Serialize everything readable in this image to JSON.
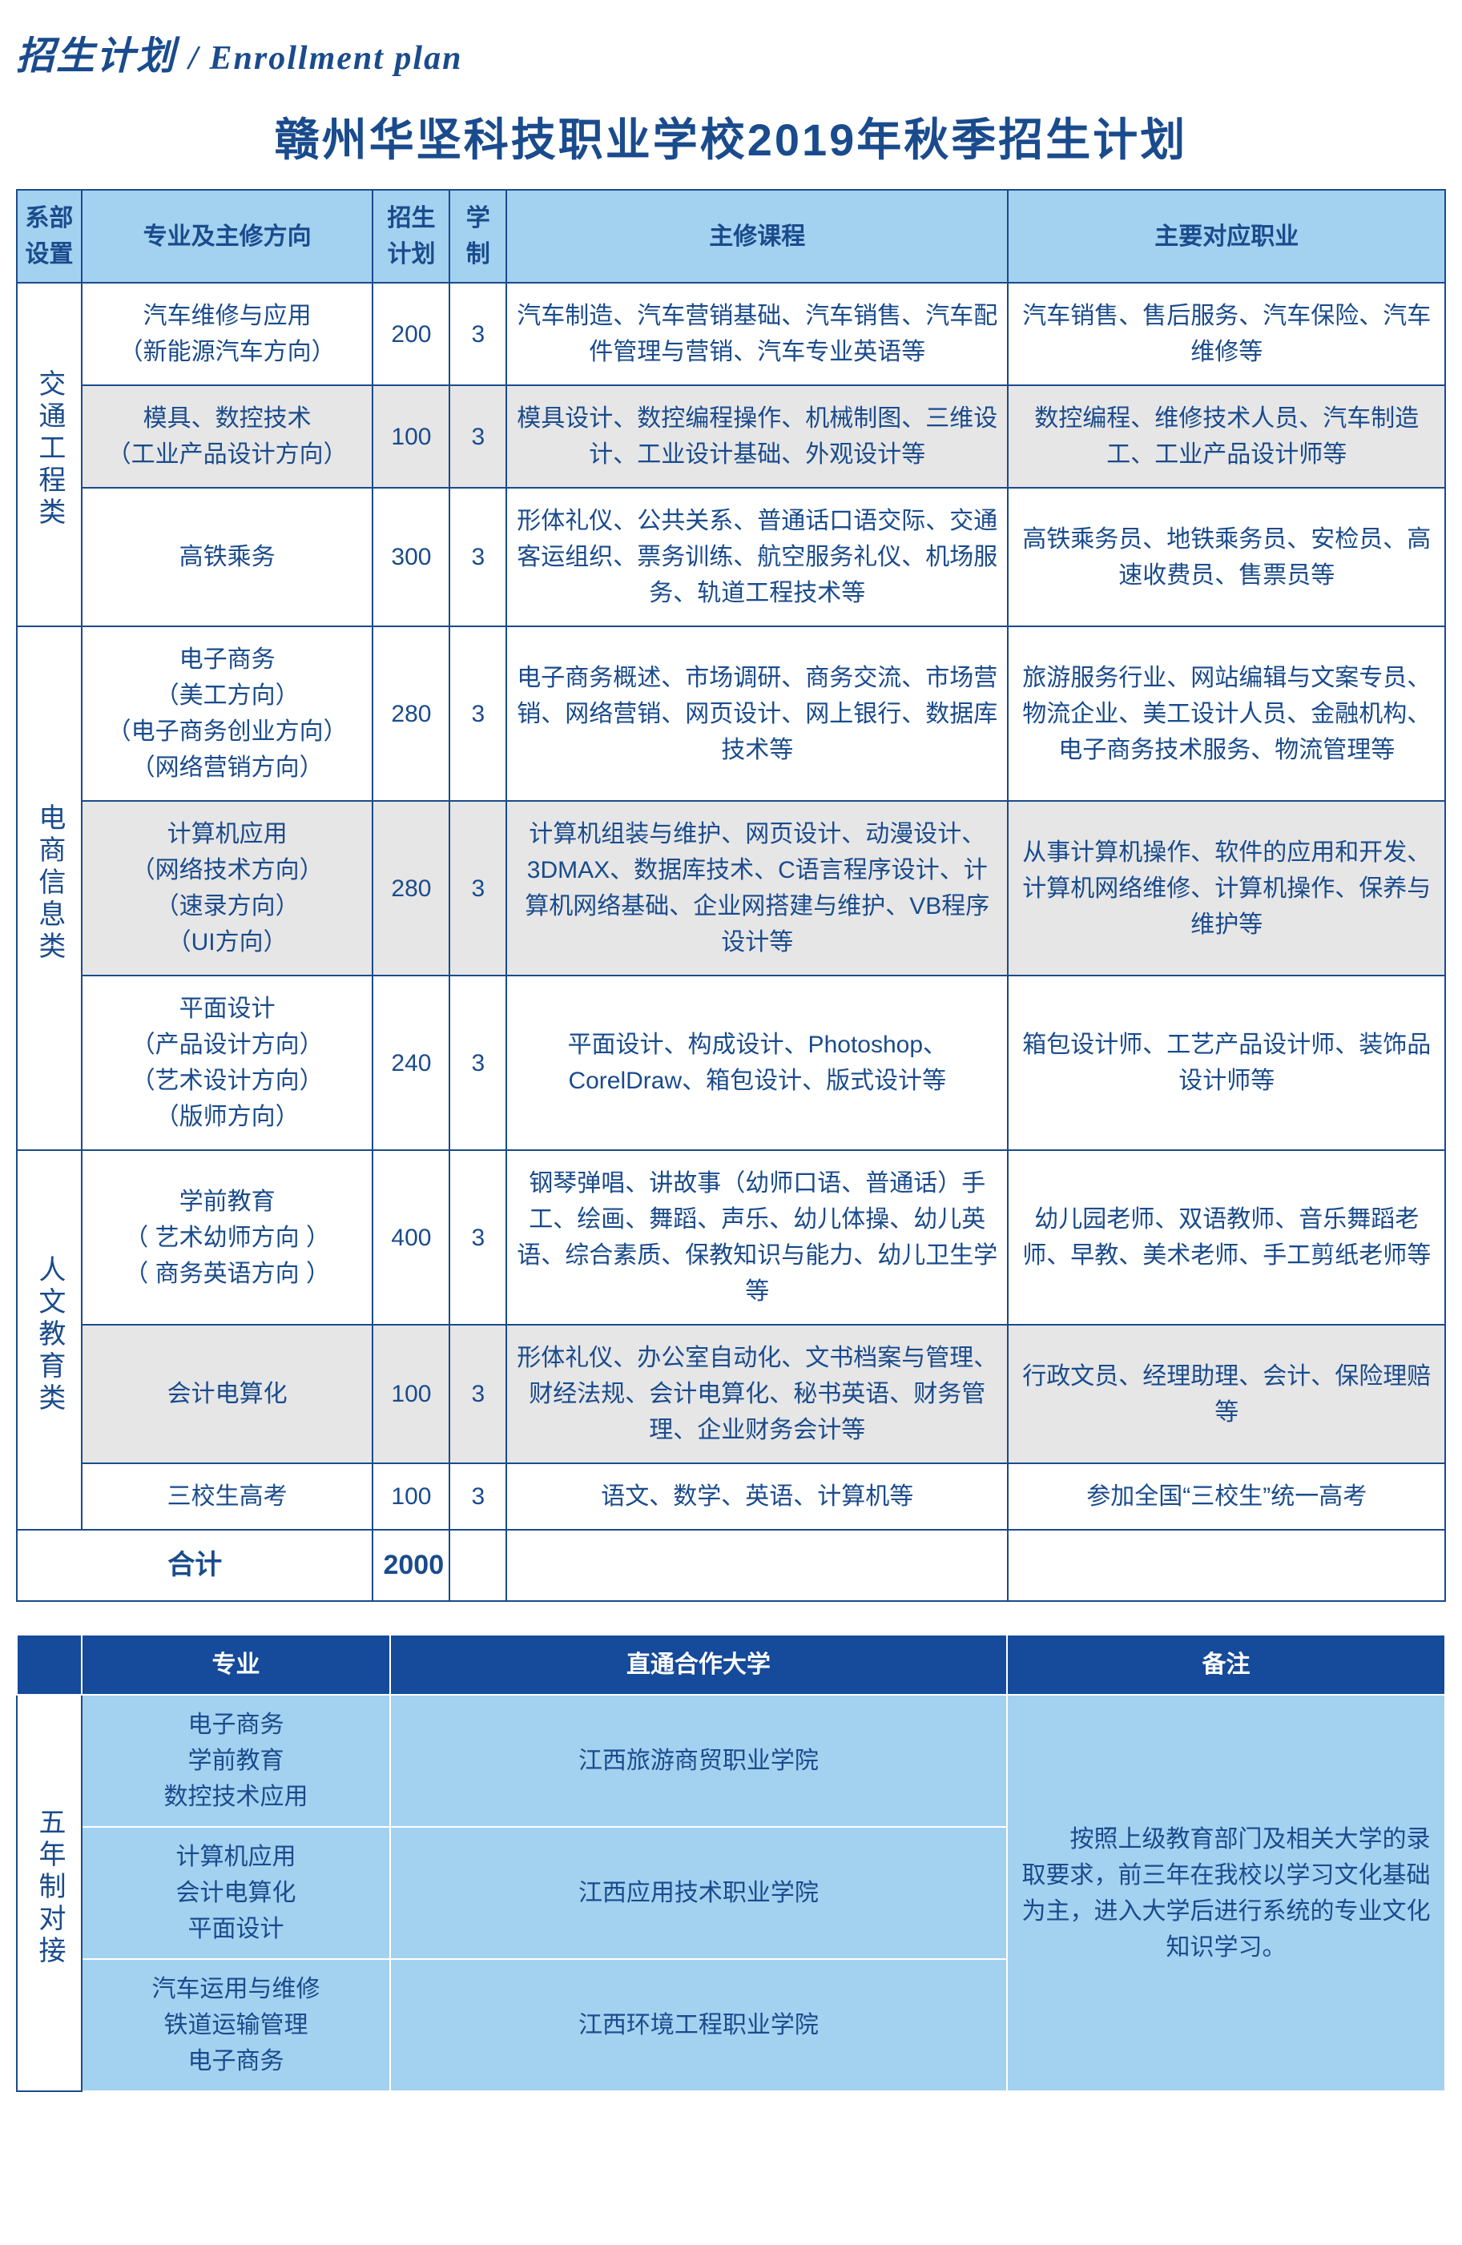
{
  "header": {
    "cn": "招生计划",
    "en": "/ Enrollment plan"
  },
  "title": "赣州华坚科技职业学校2019年秋季招生计划",
  "mainTable": {
    "headers": {
      "dept": "系部设置",
      "major": "专业及主修方向",
      "quota": "招生计划",
      "system": "学制",
      "courses": "主修课程",
      "careers": "主要对应职业"
    },
    "groups": [
      {
        "dept": "交通工程类",
        "rows": [
          {
            "alt": false,
            "major": "汽车维修与应用\n（新能源汽车方向）",
            "quota": "200",
            "system": "3",
            "courses": "汽车制造、汽车营销基础、汽车销售、汽车配件管理与营销、汽车专业英语等",
            "careers": "汽车销售、售后服务、汽车保险、汽车维修等"
          },
          {
            "alt": true,
            "major": "模具、数控技术\n（工业产品设计方向）",
            "quota": "100",
            "system": "3",
            "courses": "模具设计、数控编程操作、机械制图、三维设计、工业设计基础、外观设计等",
            "careers": "数控编程、维修技术人员、汽车制造工、工业产品设计师等"
          },
          {
            "alt": false,
            "major": "高铁乘务",
            "quota": "300",
            "system": "3",
            "courses": "形体礼仪、公共关系、普通话口语交际、交通客运组织、票务训练、航空服务礼仪、机场服务、轨道工程技术等",
            "careers": "高铁乘务员、地铁乘务员、安检员、高速收费员、售票员等"
          }
        ]
      },
      {
        "dept": "电商信息类",
        "rows": [
          {
            "alt": false,
            "major": "电子商务\n（美工方向）\n（电子商务创业方向）\n（网络营销方向）",
            "quota": "280",
            "system": "3",
            "courses": "电子商务概述、市场调研、商务交流、市场营销、网络营销、网页设计、网上银行、数据库技术等",
            "careers": "旅游服务行业、网站编辑与文案专员、物流企业、美工设计人员、金融机构、电子商务技术服务、物流管理等"
          },
          {
            "alt": true,
            "major": "计算机应用\n（网络技术方向）\n（速录方向）\n（UI方向）",
            "quota": "280",
            "system": "3",
            "courses": "计算机组装与维护、网页设计、动漫设计、3DMAX、数据库技术、C语言程序设计、计算机网络基础、企业网搭建与维护、VB程序设计等",
            "careers": "从事计算机操作、软件的应用和开发、计算机网络维修、计算机操作、保养与维护等"
          },
          {
            "alt": false,
            "major": "平面设计\n（产品设计方向）\n（艺术设计方向）\n（版师方向）",
            "quota": "240",
            "system": "3",
            "courses": "平面设计、构成设计、Photoshop、CorelDraw、箱包设计、版式设计等",
            "careers": "箱包设计师、工艺产品设计师、装饰品设计师等"
          }
        ]
      },
      {
        "dept": "人文教育类",
        "rows": [
          {
            "alt": false,
            "major": "学前教育\n（ 艺术幼师方向 ）\n（ 商务英语方向 ）",
            "quota": "400",
            "system": "3",
            "courses": "钢琴弹唱、讲故事（幼师口语、普通话）手工、绘画、舞蹈、声乐、幼儿体操、幼儿英语、综合素质、保教知识与能力、幼儿卫生学等",
            "careers": "幼儿园老师、双语教师、音乐舞蹈老师、早教、美术老师、手工剪纸老师等"
          },
          {
            "alt": true,
            "major": "会计电算化",
            "quota": "100",
            "system": "3",
            "courses": "形体礼仪、办公室自动化、文书档案与管理、财经法规、会计电算化、秘书英语、财务管理、企业财务会计等",
            "careers": "行政文员、经理助理、会计、保险理赔等"
          },
          {
            "alt": false,
            "major": "三校生高考",
            "quota": "100",
            "system": "3",
            "courses": "语文、数学、英语、计算机等",
            "careers": "参加全国“三校生”统一高考"
          }
        ]
      }
    ],
    "total": {
      "label": "合计",
      "quota": "2000"
    }
  },
  "subTable": {
    "headers": {
      "major": "专业",
      "uni": "直通合作大学",
      "note": "备注"
    },
    "deptLabel": "五年制对接",
    "rows": [
      {
        "major": "电子商务\n学前教育\n数控技术应用",
        "uni": "江西旅游商贸职业学院"
      },
      {
        "major": "计算机应用\n会计电算化\n平面设计",
        "uni": "江西应用技术职业学院"
      },
      {
        "major": "汽车运用与维修\n铁道运输管理\n电子商务",
        "uni": "江西环境工程职业学院"
      }
    ],
    "note": "　　按照上级教育部门及相关大学的录取要求，前三年在我校以学习文化基础为主，进入大学后进行系统的专业文化知识学习。"
  },
  "colors": {
    "primary": "#1a4b8c",
    "headerBg": "#a3d1f0",
    "altRow": "#e6e6e6",
    "subHeaderBg": "#164a9a"
  }
}
